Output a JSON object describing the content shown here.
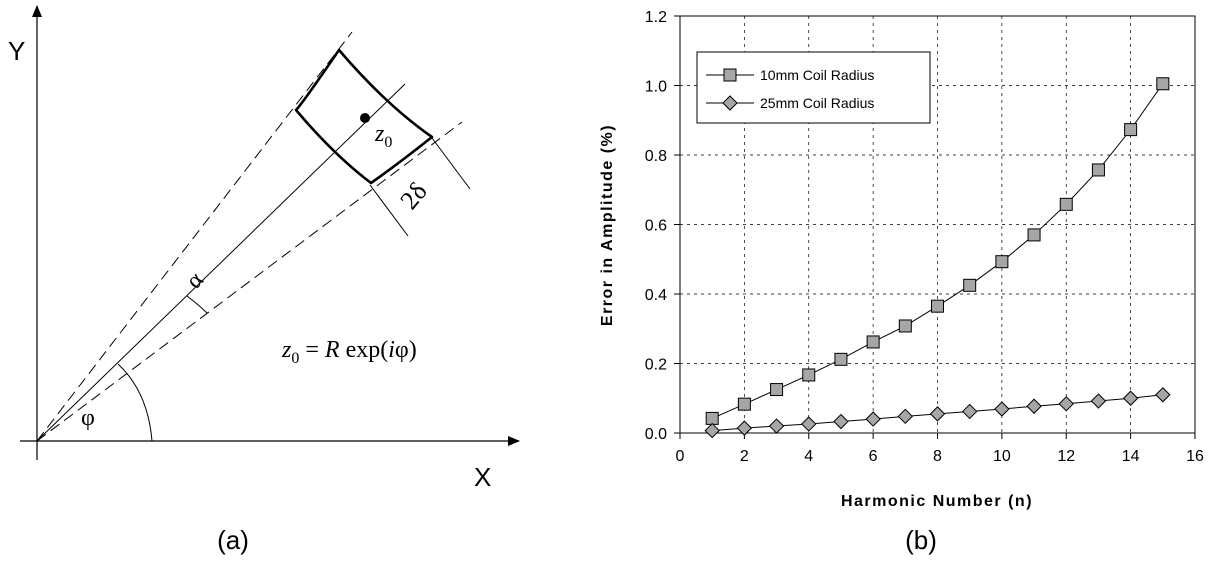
{
  "diagram_a": {
    "axis_y": "Y",
    "axis_x": "X",
    "point_var": "z",
    "point_sub": "0",
    "alpha": "α",
    "phi": "φ",
    "width_label": "2δ",
    "formula": {
      "lhs": "z",
      "lhs_sub": "0",
      "eq": " = ",
      "R": "R",
      "exp": " exp(",
      "i": "i",
      "phi": "φ",
      "close": ")"
    },
    "caption": "(a)"
  },
  "chart_data": {
    "type": "line",
    "x": [
      1,
      2,
      3,
      4,
      5,
      6,
      7,
      8,
      9,
      10,
      11,
      12,
      13,
      14,
      15
    ],
    "series": [
      {
        "name": "10mm Coil Radius",
        "marker": "square",
        "values": [
          0.042,
          0.083,
          0.125,
          0.167,
          0.212,
          0.262,
          0.308,
          0.365,
          0.425,
          0.493,
          0.57,
          0.658,
          0.757,
          0.873,
          1.005
        ]
      },
      {
        "name": "25mm Coil Radius",
        "marker": "diamond",
        "values": [
          0.007,
          0.014,
          0.02,
          0.026,
          0.033,
          0.04,
          0.048,
          0.055,
          0.062,
          0.069,
          0.077,
          0.084,
          0.092,
          0.1,
          0.11
        ]
      }
    ],
    "xlabel": "Harmonic Number (n)",
    "ylabel": "Error in Amplitude (%)",
    "xlim": [
      0,
      16
    ],
    "ylim": [
      0,
      1.2
    ],
    "xticks": [
      0,
      2,
      4,
      6,
      8,
      10,
      12,
      14,
      16
    ],
    "yticks": [
      0.0,
      0.2,
      0.4,
      0.6,
      0.8,
      1.0,
      1.2
    ],
    "ytick_labels": [
      "0.0",
      "0.2",
      "0.4",
      "0.6",
      "0.8",
      "1.0",
      "1.2"
    ],
    "grid": true,
    "legend": "top-left",
    "marker_fill": "#a6a6a6",
    "caption": "(b)"
  }
}
